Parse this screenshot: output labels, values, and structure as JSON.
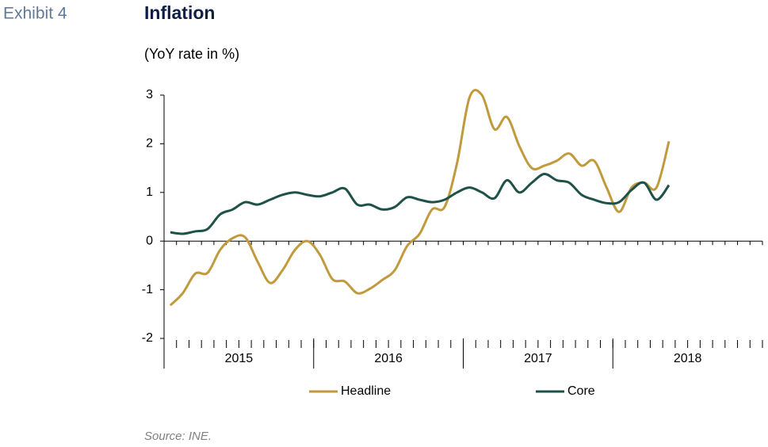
{
  "label": "Exhibit 4",
  "chart_data": {
    "type": "line",
    "title": "Inflation",
    "subtitle": "(YoY rate in %)",
    "source": "Source: INE.",
    "categories": [
      null,
      null,
      null,
      null,
      null,
      null,
      null,
      null,
      null,
      null,
      null,
      null,
      null,
      null,
      null,
      null,
      null,
      null,
      null,
      null,
      null,
      null,
      null,
      null,
      null,
      null,
      null,
      null,
      null,
      null,
      null,
      null,
      null,
      null,
      null,
      null,
      null,
      null,
      null,
      null,
      null,
      null,
      null,
      null,
      null,
      null,
      null,
      null
    ],
    "xgroups": [
      "2015",
      "2016",
      "2017",
      "2018"
    ],
    "ylim": [
      -2,
      3
    ],
    "yticks": [
      -2,
      -1,
      0,
      1,
      2,
      3
    ],
    "series": [
      {
        "name": "Headline",
        "color": "#c09a3c",
        "values": [
          -1.32,
          -1.07,
          -0.67,
          -0.65,
          -0.18,
          0.06,
          0.08,
          -0.42,
          -0.86,
          -0.6,
          -0.18,
          0.0,
          -0.28,
          -0.78,
          -0.83,
          -1.07,
          -0.98,
          -0.8,
          -0.6,
          -0.1,
          0.15,
          0.65,
          0.7,
          1.6,
          2.95,
          3.0,
          2.3,
          2.55,
          1.95,
          1.5,
          1.55,
          1.65,
          1.8,
          1.55,
          1.65,
          1.1,
          0.6,
          1.1,
          1.2,
          1.1,
          2.05,
          null,
          null,
          null,
          null,
          null,
          null,
          null
        ]
      },
      {
        "name": "Core",
        "color": "#1e5248",
        "values": [
          0.18,
          0.15,
          0.2,
          0.25,
          0.55,
          0.65,
          0.8,
          0.75,
          0.85,
          0.95,
          1.0,
          0.95,
          0.92,
          1.0,
          1.08,
          0.75,
          0.75,
          0.65,
          0.7,
          0.9,
          0.85,
          0.8,
          0.85,
          1.0,
          1.1,
          1.0,
          0.88,
          1.25,
          1.0,
          1.2,
          1.38,
          1.25,
          1.2,
          0.95,
          0.85,
          0.78,
          0.8,
          1.05,
          1.2,
          0.85,
          1.15,
          null,
          null,
          null,
          null,
          null,
          null,
          null
        ]
      }
    ]
  }
}
